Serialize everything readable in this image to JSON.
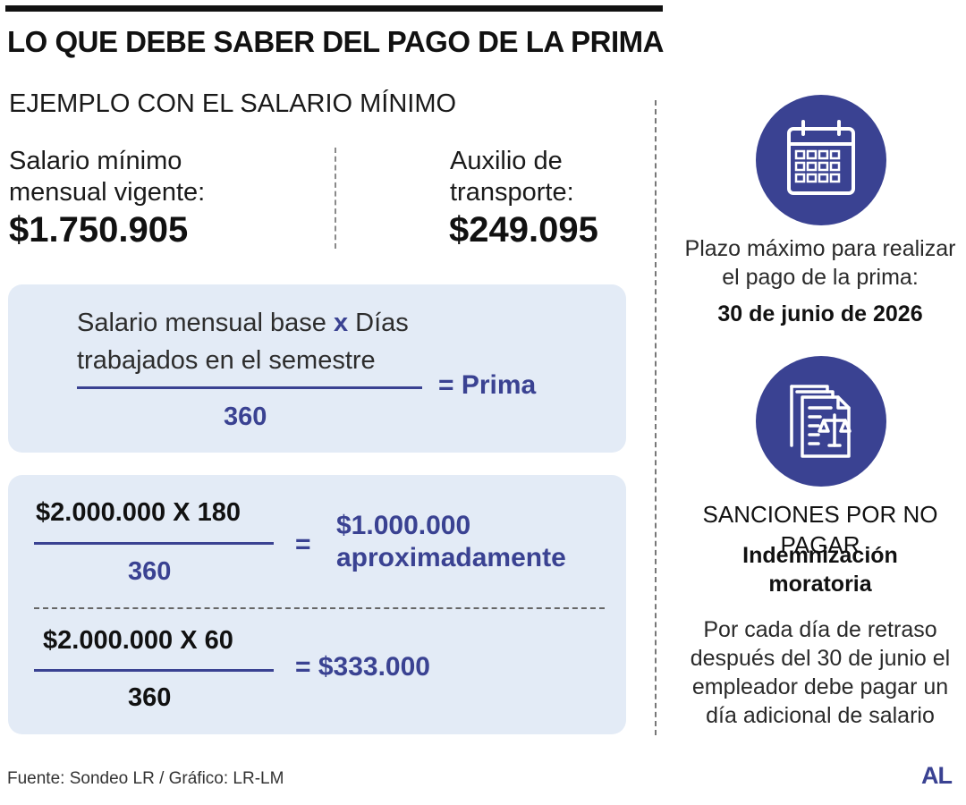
{
  "header": {
    "title": "LO QUE DEBE SABER DEL PAGO DE LA PRIMA",
    "subtitle": "EJEMPLO CON EL SALARIO MÍNIMO"
  },
  "amounts": {
    "salario": {
      "label_line1": "Salario mínimo",
      "label_line2": "mensual vigente:",
      "value": "$1.750.905"
    },
    "auxilio": {
      "label_line1": "Auxilio de",
      "label_line2": "transporte:",
      "value": "$249.095"
    }
  },
  "formula": {
    "numerator_line1_a": "Salario mensual base",
    "operator": "x",
    "numerator_line1_b": "Días",
    "numerator_line2": "trabajados en el semestre",
    "denominator": "360",
    "result": "= Prima"
  },
  "examples": [
    {
      "numerator": "$2.000.000 X 180",
      "denominator": "360",
      "equals": "=",
      "result_line1": "$1.000.000",
      "result_line2": "aproximadamente"
    },
    {
      "numerator": "$2.000.000 X 60",
      "denominator": "360",
      "result": "= $333.000"
    }
  ],
  "deadline": {
    "icon": "calendar-icon",
    "text_line1": "Plazo máximo para realizar",
    "text_line2": "el pago de la prima:",
    "date": "30 de junio de 2026"
  },
  "sanctions": {
    "icon": "legal-document-scale-icon",
    "heading": "SANCIONES POR NO PAGAR",
    "bold_line1": "Indemnización",
    "bold_line2": "moratoria",
    "desc_line1": "Por cada día de retraso",
    "desc_line2": "después del 30 de junio el",
    "desc_line3": "empleador debe pagar un",
    "desc_line4": "día adicional de salario"
  },
  "footer": {
    "source": "Fuente: Sondeo LR / Gráfico: LR-LM",
    "logo": "AL"
  },
  "colors": {
    "accent": "#3a4292",
    "box_bg": "#e3ebf6",
    "text": "#1a1a1a"
  }
}
